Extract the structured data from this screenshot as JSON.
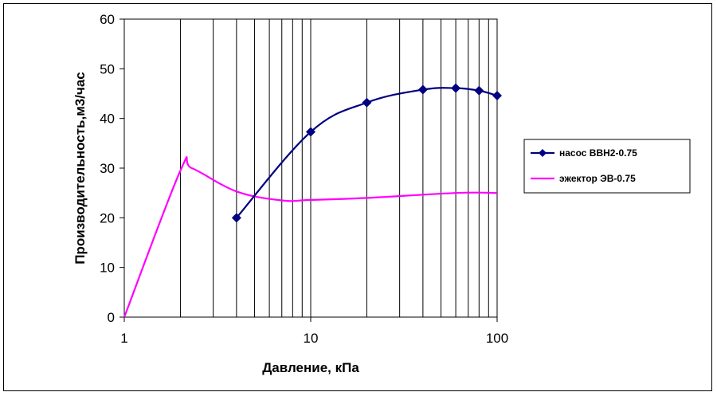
{
  "chart_data": {
    "type": "line",
    "title": "",
    "xlabel": "Давление, кПа",
    "ylabel": "Производительность,м3/час",
    "x_scale": "log",
    "xlim": [
      1,
      100
    ],
    "ylim": [
      0,
      60
    ],
    "x_ticks": [
      "1",
      "10",
      "100"
    ],
    "y_ticks": [
      "0",
      "10",
      "20",
      "30",
      "40",
      "50",
      "60"
    ],
    "grid": "vertical",
    "legend_position": "right",
    "series": [
      {
        "name": "насос ВВН2-0.75",
        "color": "#000080",
        "marker": "diamond",
        "smooth": true,
        "points": [
          [
            4,
            20
          ],
          [
            10,
            37.3
          ],
          [
            20,
            43.2
          ],
          [
            40,
            45.8
          ],
          [
            60,
            46.1
          ],
          [
            80,
            45.6
          ],
          [
            100,
            44.6
          ]
        ]
      },
      {
        "name": "эжектор ЭВ-0.75",
        "color": "#ff00ff",
        "marker": "none",
        "smooth": true,
        "points": [
          [
            1,
            0
          ],
          [
            2,
            29.5
          ],
          [
            2.3,
            30
          ],
          [
            4,
            25.3
          ],
          [
            7,
            23.5
          ],
          [
            10,
            23.6
          ],
          [
            20,
            24
          ],
          [
            60,
            25
          ],
          [
            100,
            25
          ]
        ]
      }
    ]
  }
}
